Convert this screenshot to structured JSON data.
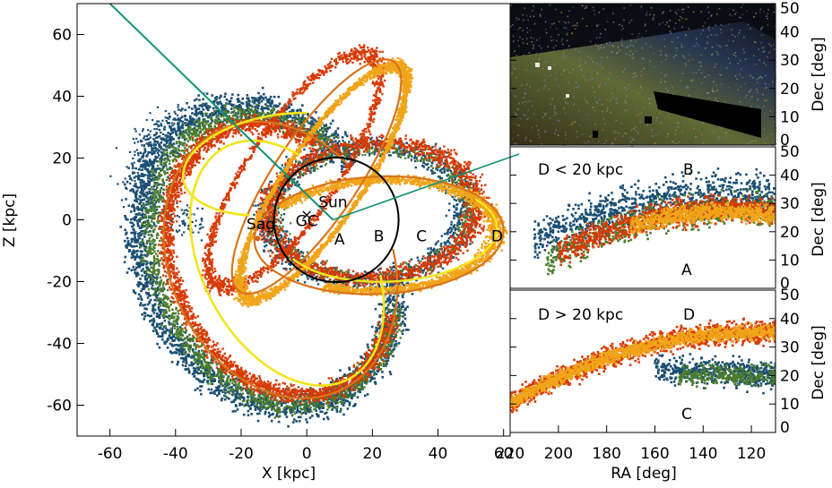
{
  "chart_data": [
    {
      "type": "scatter",
      "xlabel": "X [kpc]",
      "ylabel": "Z [kpc]",
      "xlim": [
        -70,
        62
      ],
      "ylim": [
        -70,
        70
      ],
      "xticks": [
        -60,
        -40,
        -20,
        0,
        20,
        40,
        60
      ],
      "yticks": [
        -60,
        -40,
        -20,
        0,
        20,
        40,
        60
      ],
      "colors": {
        "blue": "#1a4e72",
        "green": "#4b7d2c",
        "red": "#d73a06",
        "orange": "#f0a418",
        "yellow": "#f2e51a",
        "dark_orange": "#d9731c",
        "teal": "#139273"
      },
      "circle": {
        "center": [
          9,
          0
        ],
        "radius": 19
      },
      "annotations": [
        {
          "text": "Sun",
          "x": 8,
          "y": 4
        },
        {
          "text": "GC",
          "x": 0,
          "y": -2
        },
        {
          "text": "×",
          "x": 0,
          "y": 0
        },
        {
          "text": "Sag",
          "x": -14,
          "y": -3
        },
        {
          "text": "A",
          "x": 10,
          "y": -8
        },
        {
          "text": "B",
          "x": 22,
          "y": -7
        },
        {
          "text": "C",
          "x": 35,
          "y": -7
        },
        {
          "text": "D",
          "x": 58,
          "y": -7
        }
      ],
      "sight_line": {
        "start": [
          -60,
          70
        ],
        "end": [
          8,
          0
        ]
      }
    },
    {
      "type": "heatmap",
      "ylabel": "Dec [deg]",
      "ylim": [
        0,
        50
      ],
      "yticks": [
        0,
        10,
        20,
        30,
        40,
        50
      ]
    },
    {
      "type": "scatter",
      "ylabel": "Dec [deg]",
      "xlim": [
        220,
        110
      ],
      "ylim": [
        0,
        50
      ],
      "yticks": [
        0,
        10,
        20,
        30,
        40,
        50
      ],
      "annotations": [
        {
          "text": "D < 20 kpc"
        },
        {
          "text": "B"
        },
        {
          "text": "A"
        }
      ]
    },
    {
      "type": "scatter",
      "xlabel": "RA [deg]",
      "ylabel": "Dec [deg]",
      "xlim": [
        220,
        110
      ],
      "ylim": [
        0,
        50
      ],
      "xticks": [
        220,
        200,
        180,
        160,
        140,
        120
      ],
      "yticks": [
        0,
        10,
        20,
        30,
        40,
        50
      ],
      "annotations": [
        {
          "text": "D > 20 kpc"
        },
        {
          "text": "D"
        },
        {
          "text": "C"
        }
      ]
    }
  ]
}
